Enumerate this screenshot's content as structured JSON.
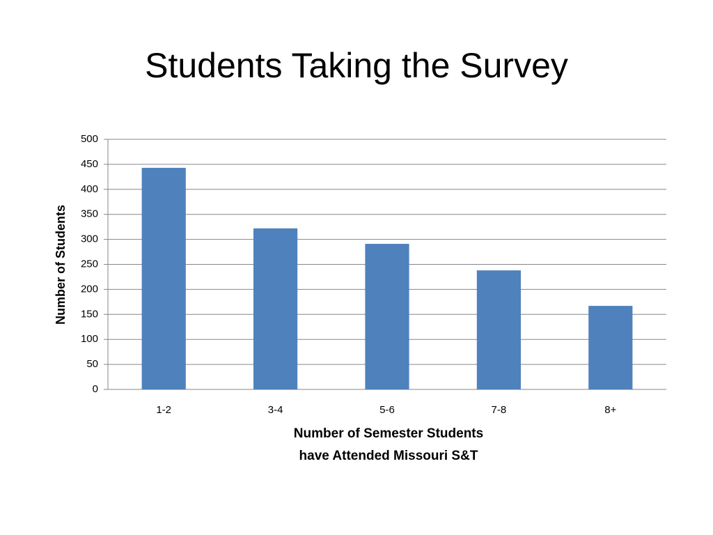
{
  "chart_data": {
    "type": "bar",
    "title": "Students Taking the Survey",
    "xlabel": [
      "Number of Semester Students",
      "have Attended Missouri S&T"
    ],
    "ylabel": "Number of Students",
    "categories": [
      "1-2",
      "3-4",
      "5-6",
      "7-8",
      "8+"
    ],
    "values": [
      443,
      322,
      291,
      238,
      167
    ],
    "color": "#4f81bd",
    "ylim": [
      0,
      500
    ],
    "yticks": [
      0,
      50,
      100,
      150,
      200,
      250,
      300,
      350,
      400,
      450,
      500
    ],
    "grid": true
  }
}
